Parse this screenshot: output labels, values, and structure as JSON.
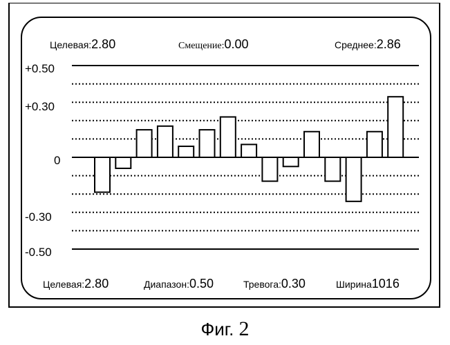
{
  "header": {
    "target": {
      "label": "Целевая:",
      "value": "2.80"
    },
    "offset": {
      "label": "Смещение:",
      "value": "0.00"
    },
    "mean": {
      "label": "Среднее:",
      "value": "2.86"
    }
  },
  "footer": {
    "target": {
      "label": "Целевая:",
      "value": "2.80"
    },
    "range": {
      "label": "Диапазон:",
      "value": "0.50"
    },
    "alarm": {
      "label": "Тревога:",
      "value": "0.30"
    },
    "width": {
      "label": "Ширина",
      "value": "1016"
    }
  },
  "caption": {
    "prefix": "Фиг.",
    "number": "2"
  },
  "chart_data": {
    "type": "bar",
    "y_tick_labels": [
      "+0.50",
      "+0.30",
      "0",
      "-0.30",
      "-0.50"
    ],
    "y_ticks": [
      0.5,
      0.3,
      0,
      -0.3,
      -0.5
    ],
    "ylim": [
      -0.5,
      0.5
    ],
    "solid_lines": [
      0.5,
      0,
      -0.5
    ],
    "dotted_grid": [
      0.4,
      0.3,
      0.2,
      0.1,
      -0.1,
      -0.2,
      -0.3,
      -0.4
    ],
    "values": [
      -0.19,
      -0.06,
      0.15,
      0.17,
      0.06,
      0.15,
      0.22,
      0.07,
      -0.13,
      -0.05,
      0.14,
      -0.13,
      -0.24,
      0.14,
      0.33
    ]
  }
}
